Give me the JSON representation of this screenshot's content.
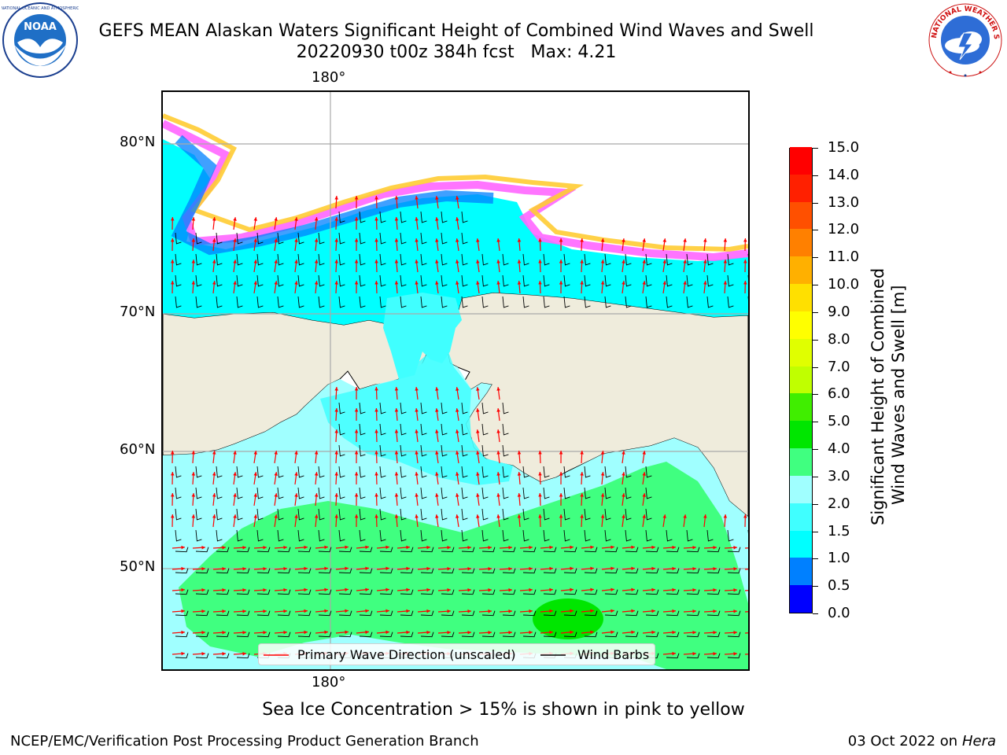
{
  "header": {
    "title_line1": "GEFS MEAN Alaskan Waters Significant Height of Combined Wind Waves and Swell",
    "title_line2": "20220930 t00z 384h fcst   Max: 4.21"
  },
  "logos": {
    "left": {
      "icon": "noaa-logo-icon",
      "text": "NOAA",
      "ring_text": "NATIONAL OCEANIC AND ATMOSPHERIC ADMINISTRATION · U.S. DEPARTMENT OF COMMERCE"
    },
    "right": {
      "icon": "nws-logo-icon",
      "ring_text": "NATIONAL WEATHER SERVICE"
    }
  },
  "map": {
    "grid_labels": {
      "top_lon": "180°",
      "bottom_lon": "180°",
      "lats": [
        "80°N",
        "70°N",
        "60°N",
        "50°N"
      ]
    },
    "legend": {
      "wave_dir": "Primary Wave Direction (unscaled)",
      "wind_barbs": "Wind Barbs",
      "wave_dir_color": "#ff0000",
      "wind_barb_color": "#000000"
    },
    "land_color": "#efecdc"
  },
  "colorbar": {
    "title_line1": "Significant Height of Combined",
    "title_line2": "Wind Waves and Swell [m]",
    "labels": [
      "0.0",
      "0.5",
      "1.0",
      "1.5",
      "2.0",
      "3.0",
      "4.0",
      "5.0",
      "6.0",
      "7.0",
      "8.0",
      "9.0",
      "10.0",
      "11.0",
      "12.0",
      "13.0",
      "14.0",
      "15.0"
    ],
    "colors": [
      "#0000ff",
      "#0080ff",
      "#00ffff",
      "#40ffff",
      "#a0ffff",
      "#40ff80",
      "#00e600",
      "#40ee00",
      "#c0ff00",
      "#e0ff00",
      "#ffff00",
      "#ffe000",
      "#ffb000",
      "#ff8000",
      "#ff5000",
      "#ff2000",
      "#ff0000"
    ]
  },
  "footer": {
    "note": "Sea Ice Concentration > 15% is shown in pink to yellow",
    "credit": "NCEP/EMC/Verification Post Processing Product Generation Branch",
    "date": "03 Oct 2022 on ",
    "machine": "Hera"
  }
}
